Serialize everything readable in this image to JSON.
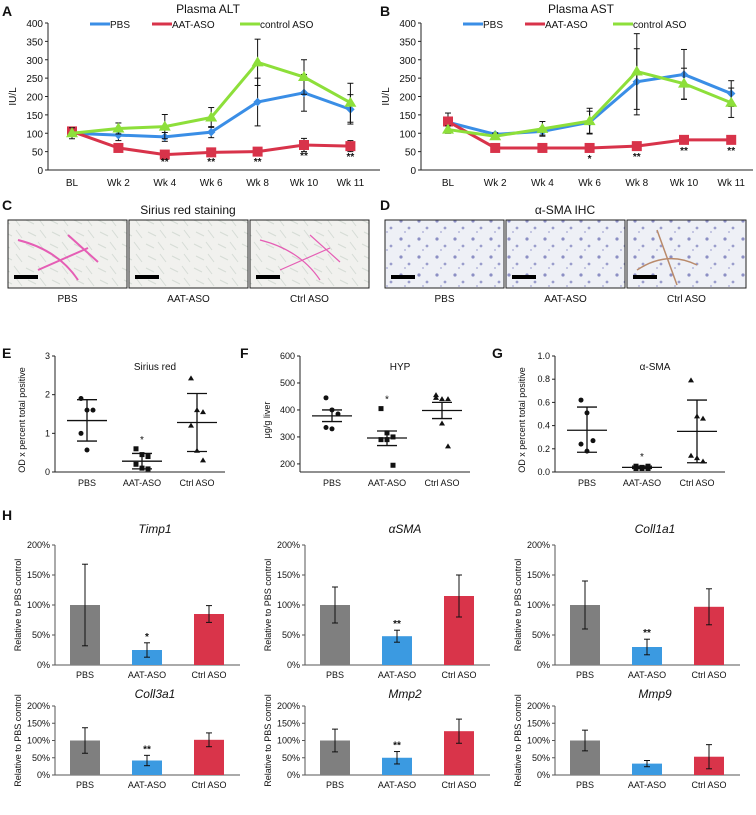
{
  "panel_letters": [
    "A",
    "B",
    "C",
    "D",
    "E",
    "F",
    "G",
    "H"
  ],
  "micrographs": [
    {
      "title": "Sirius red staining",
      "labels": [
        "PBS",
        "AAT-ASO",
        "Ctrl ASO"
      ],
      "stain": "sirius"
    },
    {
      "title": "α-SMA IHC",
      "labels": [
        "PBS",
        "AAT-ASO",
        "Ctrl ASO"
      ],
      "stain": "ihc"
    }
  ],
  "colors": {
    "PBS": "#3a8ee6",
    "AAT-ASO": "#d8334a",
    "control ASO": "#8ddf3a",
    "bar_pbs": "#7f7f7f",
    "bar_aat": "#3b9ae1",
    "bar_ctrl": "#d9344a"
  },
  "chart_data": [
    {
      "type": "line",
      "title": "Plasma ALT",
      "ylabel": "IU/L",
      "ylim": [
        0,
        400
      ],
      "yticks": [
        0,
        50,
        100,
        150,
        200,
        250,
        300,
        350,
        400
      ],
      "categories": [
        "BL",
        "Wk 2",
        "Wk 4",
        "Wk 6",
        "Wk 8",
        "Wk 10",
        "Wk 11"
      ],
      "series": [
        {
          "name": "PBS",
          "values": [
            100,
            95,
            90,
            103,
            185,
            210,
            165
          ],
          "errors": [
            8,
            15,
            12,
            15,
            65,
            50,
            40
          ]
        },
        {
          "name": "AAT-ASO",
          "values": [
            105,
            60,
            42,
            48,
            50,
            68,
            65
          ],
          "errors": [
            12,
            5,
            5,
            5,
            5,
            18,
            15
          ]
        },
        {
          "name": "control ASO",
          "values": [
            100,
            113,
            118,
            143,
            293,
            253,
            183
          ],
          "errors": [
            15,
            15,
            33,
            27,
            63,
            47,
            53
          ]
        }
      ],
      "significance": [
        "",
        "",
        "**",
        "**",
        "**",
        "**",
        "**"
      ]
    },
    {
      "type": "line",
      "title": "Plasma AST",
      "ylabel": "IU/L",
      "ylim": [
        0,
        400
      ],
      "yticks": [
        0,
        50,
        100,
        150,
        200,
        250,
        300,
        350,
        400
      ],
      "categories": [
        "BL",
        "Wk 2",
        "Wk 4",
        "Wk 6",
        "Wk 8",
        "Wk 10",
        "Wk 11"
      ],
      "series": [
        {
          "name": "PBS",
          "values": [
            130,
            97,
            105,
            130,
            240,
            260,
            208
          ],
          "errors": [
            25,
            5,
            10,
            30,
            90,
            68,
            35
          ]
        },
        {
          "name": "AAT-ASO",
          "values": [
            132,
            60,
            60,
            60,
            65,
            82,
            82
          ],
          "errors": [
            10,
            4,
            4,
            4,
            4,
            4,
            4
          ]
        },
        {
          "name": "control ASO",
          "values": [
            110,
            92,
            112,
            133,
            268,
            235,
            183
          ],
          "errors": [
            10,
            8,
            20,
            35,
            103,
            42,
            40
          ]
        }
      ],
      "significance": [
        "",
        "",
        "",
        "*",
        "**",
        "**",
        "**"
      ]
    },
    {
      "type": "scatter",
      "title": "Sirius red",
      "ylabel": "OD x percent total positive",
      "ylim": [
        0,
        3
      ],
      "yticks": [
        "0",
        "1",
        "2",
        "3"
      ],
      "ytick_values": [
        0,
        1,
        2,
        3
      ],
      "categories": [
        "PBS",
        "AAT-ASO",
        "Ctrl ASO"
      ],
      "groups": [
        {
          "points": [
            1.9,
            1.6,
            1.6,
            1.0,
            0.57
          ],
          "mean": 1.33,
          "lower": 0.8,
          "upper": 1.87,
          "marker": "circle",
          "sig": ""
        },
        {
          "points": [
            0.6,
            0.45,
            0.4,
            0.2,
            0.1,
            0.08
          ],
          "mean": 0.28,
          "lower": 0.08,
          "upper": 0.48,
          "marker": "square",
          "sig": "*"
        },
        {
          "points": [
            2.42,
            1.6,
            1.55,
            1.2,
            0.55,
            0.3
          ],
          "mean": 1.28,
          "lower": 0.53,
          "upper": 2.03,
          "marker": "triangle",
          "sig": ""
        }
      ]
    },
    {
      "type": "scatter",
      "title": "HYP",
      "ylabel": "μg/g liver",
      "ylim": [
        170,
        600
      ],
      "yticks": [
        "200",
        "300",
        "400",
        "500",
        "600"
      ],
      "ytick_values": [
        200,
        300,
        400,
        500,
        600
      ],
      "categories": [
        "PBS",
        "AAT-ASO",
        "Ctrl ASO"
      ],
      "groups": [
        {
          "points": [
            445,
            400,
            385,
            335,
            330
          ],
          "mean": 378,
          "lower": 357,
          "upper": 400,
          "marker": "circle",
          "sig": ""
        },
        {
          "points": [
            405,
            315,
            300,
            290,
            290,
            195
          ],
          "mean": 296,
          "lower": 268,
          "upper": 322,
          "marker": "square",
          "sig": "*"
        },
        {
          "points": [
            445,
            440,
            440,
            455,
            350,
            265
          ],
          "mean": 398,
          "lower": 368,
          "upper": 428,
          "marker": "triangle",
          "sig": ""
        }
      ]
    },
    {
      "type": "scatter",
      "title": "α-SMA",
      "ylabel": "OD x percent total positive",
      "ylim": [
        0,
        1
      ],
      "yticks": [
        "0.0",
        "0.2",
        "0.4",
        "0.6",
        "0.8",
        "1.0"
      ],
      "ytick_values": [
        0,
        0.2,
        0.4,
        0.6,
        0.8,
        1.0
      ],
      "categories": [
        "PBS",
        "AAT-ASO",
        "Ctrl ASO"
      ],
      "groups": [
        {
          "points": [
            0.62,
            0.51,
            0.27,
            0.24,
            0.18
          ],
          "mean": 0.36,
          "lower": 0.17,
          "upper": 0.56,
          "marker": "circle",
          "sig": ""
        },
        {
          "points": [
            0.05,
            0.03,
            0.03,
            0.03,
            0.04,
            0.05
          ],
          "mean": 0.04,
          "lower": 0.03,
          "upper": 0.05,
          "marker": "square",
          "sig": "*"
        },
        {
          "points": [
            0.79,
            0.48,
            0.46,
            0.14,
            0.12,
            0.09
          ],
          "mean": 0.35,
          "lower": 0.08,
          "upper": 0.62,
          "marker": "triangle",
          "sig": ""
        }
      ]
    },
    {
      "type": "bar",
      "title": "Timp1",
      "ylabel": "Relative to PBS control",
      "ylim": [
        0,
        200
      ],
      "yticks": [
        "0%",
        "50%",
        "100%",
        "150%",
        "200%"
      ],
      "categories": [
        "PBS",
        "AAT-ASO",
        "Ctrl ASO"
      ],
      "values": [
        100,
        25,
        85
      ],
      "errors": [
        68,
        12,
        14
      ],
      "significance": [
        "",
        "*",
        ""
      ]
    },
    {
      "type": "bar",
      "title": "αSMA",
      "ylabel": "Relative to PBS control",
      "ylim": [
        0,
        200
      ],
      "yticks": [
        "0%",
        "50%",
        "100%",
        "150%",
        "200%"
      ],
      "categories": [
        "PBS",
        "AAT-ASO",
        "Ctrl ASO"
      ],
      "values": [
        100,
        48,
        115
      ],
      "errors": [
        30,
        10,
        35
      ],
      "significance": [
        "",
        "**",
        ""
      ]
    },
    {
      "type": "bar",
      "title": "Coll1a1",
      "ylabel": "Relative to PBS control",
      "ylim": [
        0,
        200
      ],
      "yticks": [
        "0%",
        "50%",
        "100%",
        "150%",
        "200%"
      ],
      "categories": [
        "PBS",
        "AAT-ASO",
        "Ctrl ASO"
      ],
      "values": [
        100,
        30,
        97
      ],
      "errors": [
        40,
        13,
        30
      ],
      "significance": [
        "",
        "**",
        ""
      ]
    },
    {
      "type": "bar",
      "title": "Coll3a1",
      "ylabel": "Relative to PBS control",
      "ylim": [
        0,
        200
      ],
      "yticks": [
        "0%",
        "50%",
        "100%",
        "150%",
        "200%"
      ],
      "categories": [
        "PBS",
        "AAT-ASO",
        "Ctrl ASO"
      ],
      "values": [
        100,
        42,
        102
      ],
      "errors": [
        37,
        15,
        20
      ],
      "significance": [
        "",
        "**",
        ""
      ]
    },
    {
      "type": "bar",
      "title": "Mmp2",
      "ylabel": "Relative to PBS control",
      "ylim": [
        0,
        200
      ],
      "yticks": [
        "0%",
        "50%",
        "100%",
        "150%",
        "200%"
      ],
      "categories": [
        "PBS",
        "AAT-ASO",
        "Ctrl ASO"
      ],
      "values": [
        100,
        50,
        127
      ],
      "errors": [
        33,
        18,
        35
      ],
      "significance": [
        "",
        "**",
        ""
      ]
    },
    {
      "type": "bar",
      "title": "Mmp9",
      "ylabel": "Relative to PBS control",
      "ylim": [
        0,
        200
      ],
      "yticks": [
        "0%",
        "50%",
        "100%",
        "150%",
        "200%"
      ],
      "categories": [
        "PBS",
        "AAT-ASO",
        "Ctrl ASO"
      ],
      "values": [
        100,
        33,
        53
      ],
      "errors": [
        30,
        9,
        35
      ],
      "significance": [
        "",
        "",
        ""
      ]
    }
  ]
}
